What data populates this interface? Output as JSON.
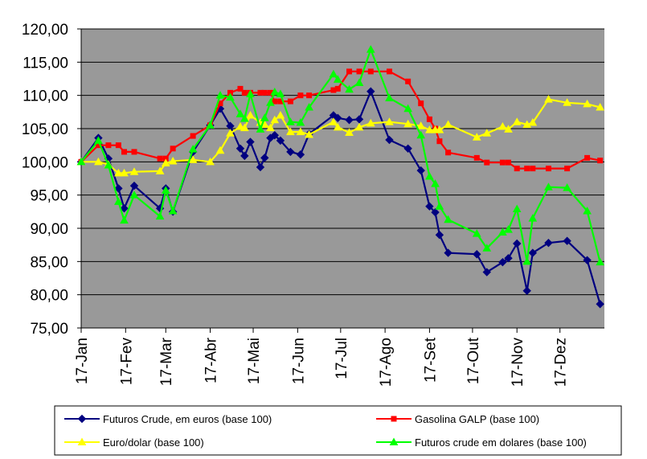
{
  "chart_data": {
    "type": "line",
    "title": "",
    "xlabel": "",
    "ylabel": "",
    "ylim": [
      75,
      120
    ],
    "ytick_step": 5,
    "y_tick_labels": [
      "75,00",
      "80,00",
      "85,00",
      "90,00",
      "95,00",
      "100,00",
      "105,00",
      "110,00",
      "115,00",
      "120,00"
    ],
    "x_range": [
      0,
      365
    ],
    "x_ticks": [
      {
        "x": 0,
        "label": "17-Jan"
      },
      {
        "x": 31,
        "label": "17-Fev"
      },
      {
        "x": 59,
        "label": "17-Mar"
      },
      {
        "x": 90,
        "label": "17-Abr"
      },
      {
        "x": 120,
        "label": "17-Mai"
      },
      {
        "x": 151,
        "label": "17-Jun"
      },
      {
        "x": 181,
        "label": "17-Jul"
      },
      {
        "x": 212,
        "label": "17-Ago"
      },
      {
        "x": 243,
        "label": "17-Set"
      },
      {
        "x": 273,
        "label": "17-Out"
      },
      {
        "x": 304,
        "label": "17-Nov"
      },
      {
        "x": 334,
        "label": "17-Dez"
      }
    ],
    "plot_background": "#999999",
    "grid": true,
    "legend_position": "bottom",
    "series": [
      {
        "name": "Futuros Crude, em euros (base 100)",
        "color": "#000080",
        "marker": "diamond",
        "points": [
          [
            0,
            100.0
          ],
          [
            12,
            103.6
          ],
          [
            19,
            100.5
          ],
          [
            26,
            96.0
          ],
          [
            30,
            93.0
          ],
          [
            37,
            96.4
          ],
          [
            55,
            93.0
          ],
          [
            59,
            96.0
          ],
          [
            64,
            92.5
          ],
          [
            78,
            101.5
          ],
          [
            90,
            105.5
          ],
          [
            97,
            108.0
          ],
          [
            104,
            105.4
          ],
          [
            111,
            102.0
          ],
          [
            114,
            100.9
          ],
          [
            118,
            103.0
          ],
          [
            125,
            99.2
          ],
          [
            128,
            100.6
          ],
          [
            132,
            103.6
          ],
          [
            135,
            104.0
          ],
          [
            139,
            103.2
          ],
          [
            146,
            101.5
          ],
          [
            153,
            101.1
          ],
          [
            159,
            104.2
          ],
          [
            176,
            107.0
          ],
          [
            179,
            106.6
          ],
          [
            187,
            106.3
          ],
          [
            194,
            106.4
          ],
          [
            202,
            110.6
          ],
          [
            215,
            103.3
          ],
          [
            228,
            102.0
          ],
          [
            237,
            98.7
          ],
          [
            243,
            93.3
          ],
          [
            247,
            92.4
          ],
          [
            250,
            89.0
          ],
          [
            256,
            86.3
          ],
          [
            276,
            86.1
          ],
          [
            283,
            83.4
          ],
          [
            294,
            84.9
          ],
          [
            298,
            85.5
          ],
          [
            304,
            87.7
          ],
          [
            311,
            80.6
          ],
          [
            315,
            86.3
          ],
          [
            326,
            87.8
          ],
          [
            339,
            88.1
          ],
          [
            353,
            85.2
          ],
          [
            362,
            78.6
          ]
        ]
      },
      {
        "name": "Gasolina GALP (base 100)",
        "color": "#ff0000",
        "marker": "square",
        "points": [
          [
            0,
            100.0
          ],
          [
            12,
            102.5
          ],
          [
            19,
            102.5
          ],
          [
            26,
            102.5
          ],
          [
            30,
            101.5
          ],
          [
            37,
            101.5
          ],
          [
            55,
            100.5
          ],
          [
            59,
            100.5
          ],
          [
            64,
            102.0
          ],
          [
            78,
            103.9
          ],
          [
            90,
            105.5
          ],
          [
            97,
            108.8
          ],
          [
            104,
            110.4
          ],
          [
            111,
            111.0
          ],
          [
            114,
            110.4
          ],
          [
            118,
            110.4
          ],
          [
            125,
            110.4
          ],
          [
            128,
            110.4
          ],
          [
            132,
            110.4
          ],
          [
            135,
            109.1
          ],
          [
            139,
            109.1
          ],
          [
            146,
            109.1
          ],
          [
            153,
            110.0
          ],
          [
            159,
            110.0
          ],
          [
            176,
            110.8
          ],
          [
            179,
            111.0
          ],
          [
            187,
            113.6
          ],
          [
            194,
            113.6
          ],
          [
            202,
            113.6
          ],
          [
            215,
            113.6
          ],
          [
            228,
            112.1
          ],
          [
            237,
            108.8
          ],
          [
            243,
            106.4
          ],
          [
            247,
            105.0
          ],
          [
            250,
            103.1
          ],
          [
            256,
            101.4
          ],
          [
            276,
            100.6
          ],
          [
            283,
            99.9
          ],
          [
            294,
            99.9
          ],
          [
            298,
            99.9
          ],
          [
            304,
            99.0
          ],
          [
            311,
            99.0
          ],
          [
            315,
            99.0
          ],
          [
            326,
            99.0
          ],
          [
            339,
            99.0
          ],
          [
            353,
            100.6
          ],
          [
            362,
            100.2
          ]
        ]
      },
      {
        "name": "Euro/dolar (base 100)",
        "color": "#ffff00",
        "marker": "triangle",
        "points": [
          [
            0,
            100.0
          ],
          [
            12,
            100.0
          ],
          [
            19,
            99.6
          ],
          [
            26,
            98.3
          ],
          [
            30,
            98.3
          ],
          [
            37,
            98.5
          ],
          [
            55,
            98.6
          ],
          [
            59,
            99.8
          ],
          [
            64,
            100.1
          ],
          [
            78,
            100.3
          ],
          [
            90,
            100.0
          ],
          [
            97,
            101.7
          ],
          [
            104,
            104.3
          ],
          [
            111,
            105.3
          ],
          [
            114,
            105.1
          ],
          [
            118,
            107.0
          ],
          [
            125,
            105.9
          ],
          [
            128,
            105.6
          ],
          [
            132,
            105.1
          ],
          [
            135,
            106.3
          ],
          [
            139,
            107.0
          ],
          [
            146,
            104.5
          ],
          [
            153,
            104.5
          ],
          [
            159,
            104.1
          ],
          [
            176,
            106.0
          ],
          [
            179,
            105.2
          ],
          [
            187,
            104.4
          ],
          [
            194,
            105.2
          ],
          [
            202,
            105.8
          ],
          [
            215,
            106.0
          ],
          [
            228,
            105.7
          ],
          [
            237,
            105.4
          ],
          [
            243,
            104.8
          ],
          [
            247,
            104.8
          ],
          [
            250,
            104.8
          ],
          [
            256,
            105.6
          ],
          [
            276,
            103.7
          ],
          [
            283,
            104.3
          ],
          [
            294,
            105.3
          ],
          [
            298,
            104.9
          ],
          [
            304,
            106.0
          ],
          [
            311,
            105.6
          ],
          [
            315,
            105.9
          ],
          [
            326,
            109.4
          ],
          [
            339,
            108.9
          ],
          [
            353,
            108.7
          ],
          [
            362,
            108.2
          ]
        ]
      },
      {
        "name": "Futuros crude em dolares (base 100)",
        "color": "#00ff00",
        "marker": "triangle",
        "points": [
          [
            0,
            100.0
          ],
          [
            12,
            103.2
          ],
          [
            19,
            99.5
          ],
          [
            26,
            94.0
          ],
          [
            30,
            91.2
          ],
          [
            37,
            95.0
          ],
          [
            55,
            91.8
          ],
          [
            59,
            95.7
          ],
          [
            64,
            92.6
          ],
          [
            78,
            101.9
          ],
          [
            90,
            105.5
          ],
          [
            97,
            110.0
          ],
          [
            104,
            109.7
          ],
          [
            111,
            107.2
          ],
          [
            114,
            106.5
          ],
          [
            118,
            110.2
          ],
          [
            125,
            104.9
          ],
          [
            128,
            106.6
          ],
          [
            132,
            108.9
          ],
          [
            135,
            110.5
          ],
          [
            139,
            110.2
          ],
          [
            146,
            106.0
          ],
          [
            153,
            105.9
          ],
          [
            159,
            108.2
          ],
          [
            176,
            113.2
          ],
          [
            179,
            112.4
          ],
          [
            187,
            110.9
          ],
          [
            194,
            111.9
          ],
          [
            202,
            116.9
          ],
          [
            215,
            109.6
          ],
          [
            228,
            108.0
          ],
          [
            237,
            104.0
          ],
          [
            243,
            97.8
          ],
          [
            247,
            96.7
          ],
          [
            250,
            93.3
          ],
          [
            256,
            91.3
          ],
          [
            276,
            89.2
          ],
          [
            283,
            87.0
          ],
          [
            294,
            89.4
          ],
          [
            298,
            89.8
          ],
          [
            304,
            92.9
          ],
          [
            311,
            85.0
          ],
          [
            315,
            91.5
          ],
          [
            326,
            96.2
          ],
          [
            339,
            96.1
          ],
          [
            353,
            92.6
          ],
          [
            362,
            84.9
          ]
        ]
      }
    ]
  }
}
